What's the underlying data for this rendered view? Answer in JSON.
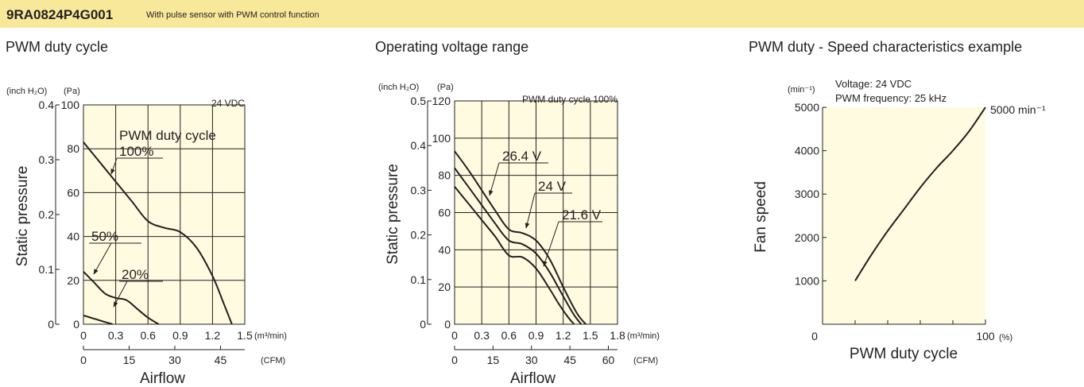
{
  "header": {
    "model": "9RA0824P4G001",
    "subtitle": "With pulse sensor with PWM control function"
  },
  "colors": {
    "header_bg": "#f7e89a",
    "plot_bg": "#fffbe0",
    "ink": "#231f20"
  },
  "chart_data": [
    {
      "type": "line",
      "title": "PWM duty cycle",
      "ylabel": "Static pressure",
      "xlabel": "Airflow",
      "annotation": "24 VDC",
      "legend_title": "PWM duty cycle",
      "x_unit_primary": "(m³/min)",
      "x_unit_secondary": "(CFM)",
      "y_unit_left": "(inch H₂O)",
      "y_unit_right": "(Pa)",
      "xlim": [
        0,
        1.5
      ],
      "ylim": [
        0,
        100
      ],
      "grid": true,
      "x_ticks": [
        "0",
        "0.3",
        "0.6",
        "0.9",
        "1.2",
        "1.5"
      ],
      "cfm_ticks": [
        "0",
        "15",
        "30",
        "45"
      ],
      "pa_ticks": [
        "0",
        "20",
        "40",
        "60",
        "80",
        "100"
      ],
      "inch_ticks": [
        "0",
        "0.1",
        "0.2",
        "0.3",
        "0.4"
      ],
      "series": [
        {
          "name": "100%",
          "x": [
            0,
            0.15,
            0.3,
            0.45,
            0.6,
            0.75,
            0.9,
            1.05,
            1.2,
            1.3,
            1.38
          ],
          "y": [
            83,
            74,
            65,
            56,
            47,
            44,
            42,
            35,
            22,
            10,
            0
          ]
        },
        {
          "name": "50%",
          "x": [
            0,
            0.1,
            0.2,
            0.3,
            0.4,
            0.5,
            0.6,
            0.7
          ],
          "y": [
            24,
            19,
            14,
            12,
            11,
            7,
            3,
            0
          ]
        },
        {
          "name": "20%",
          "x": [
            0,
            0.1,
            0.2,
            0.27
          ],
          "y": [
            4,
            2.5,
            1,
            0
          ]
        }
      ]
    },
    {
      "type": "line",
      "title": "Operating voltage range",
      "ylabel": "Static pressure",
      "xlabel": "Airflow",
      "annotation": "PWM duty cycle 100%",
      "x_unit_primary": "(m³/min)",
      "x_unit_secondary": "(CFM)",
      "y_unit_left": "(inch H₂O)",
      "y_unit_right": "(Pa)",
      "xlim": [
        0,
        1.8
      ],
      "ylim": [
        0,
        120
      ],
      "grid": true,
      "x_ticks": [
        "0",
        "0.3",
        "0.6",
        "0.9",
        "1.2",
        "1.5",
        "1.8"
      ],
      "cfm_ticks": [
        "0",
        "15",
        "30",
        "45",
        "60"
      ],
      "pa_ticks": [
        "0",
        "20",
        "40",
        "60",
        "80",
        "100",
        "120"
      ],
      "inch_ticks": [
        "0",
        "0.1",
        "0.2",
        "0.3",
        "0.4",
        "0.5"
      ],
      "series": [
        {
          "name": "26.4 V",
          "x": [
            0,
            0.15,
            0.3,
            0.45,
            0.6,
            0.75,
            0.9,
            1.05,
            1.2,
            1.35,
            1.45
          ],
          "y": [
            93,
            83,
            72,
            61,
            51,
            49,
            45,
            35,
            20,
            6,
            0
          ]
        },
        {
          "name": "24 V",
          "x": [
            0,
            0.15,
            0.3,
            0.45,
            0.6,
            0.75,
            0.9,
            1.05,
            1.2,
            1.32,
            1.4
          ],
          "y": [
            84,
            74,
            64,
            54,
            45,
            43,
            38,
            28,
            15,
            5,
            0
          ]
        },
        {
          "name": "21.6 V",
          "x": [
            0,
            0.15,
            0.3,
            0.45,
            0.6,
            0.75,
            0.9,
            1.05,
            1.15,
            1.25,
            1.32
          ],
          "y": [
            74,
            65,
            56,
            47,
            37,
            36,
            30,
            19,
            11,
            4,
            0
          ]
        }
      ]
    },
    {
      "type": "line",
      "title": "PWM duty - Speed characteristics example",
      "ylabel": "Fan speed",
      "xlabel": "PWM duty cycle",
      "annotations": [
        "Voltage: 24 VDC",
        "PWM frequency: 25 kHz"
      ],
      "end_label": "5000 min⁻¹",
      "x_unit": "(%)",
      "y_unit": "(min⁻¹)",
      "xlim": [
        0,
        100
      ],
      "ylim": [
        0,
        5000
      ],
      "grid": false,
      "x_ticks": [
        "0",
        "100"
      ],
      "y_ticks": [
        "1000",
        "2000",
        "3000",
        "4000",
        "5000"
      ],
      "series": [
        {
          "x": [
            20,
            30,
            40,
            50,
            60,
            70,
            80,
            90,
            100
          ],
          "y": [
            1000,
            1600,
            2150,
            2650,
            3150,
            3600,
            4000,
            4450,
            5000
          ]
        }
      ]
    }
  ]
}
